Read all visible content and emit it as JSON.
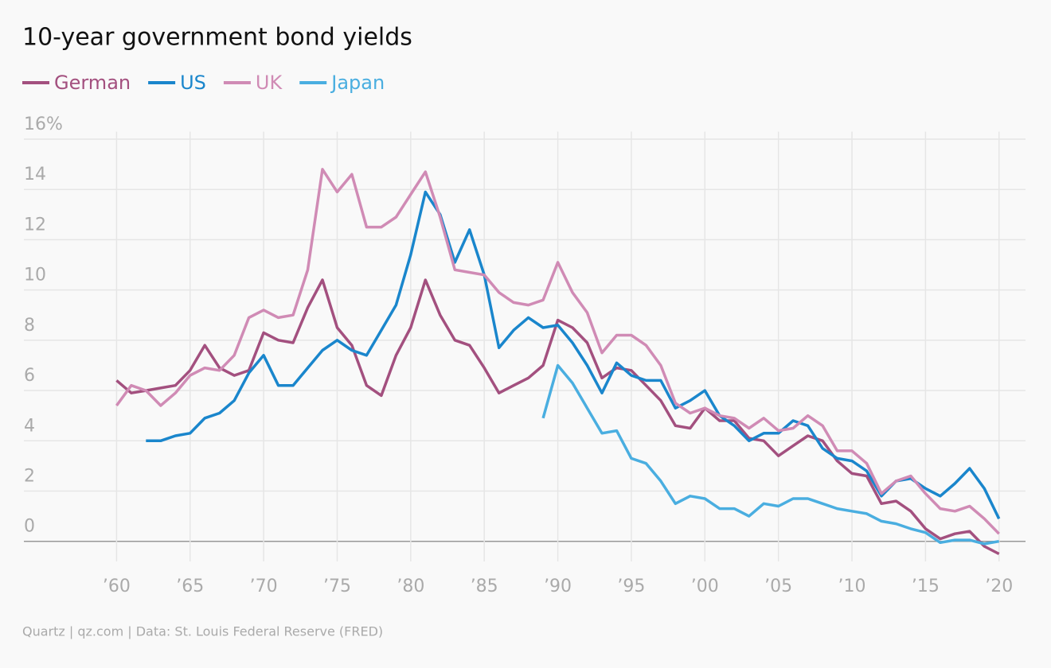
{
  "chart_data": {
    "type": "line",
    "title": "10-year government bond yields",
    "source": "Quartz | qz.com | Data: St. Louis Federal Reserve (FRED)",
    "x": [
      1960,
      1961,
      1962,
      1963,
      1964,
      1965,
      1966,
      1967,
      1968,
      1969,
      1970,
      1971,
      1972,
      1973,
      1974,
      1975,
      1976,
      1977,
      1978,
      1979,
      1980,
      1981,
      1982,
      1983,
      1984,
      1985,
      1986,
      1987,
      1988,
      1989,
      1990,
      1991,
      1992,
      1993,
      1994,
      1995,
      1996,
      1997,
      1998,
      1999,
      2000,
      2001,
      2002,
      2003,
      2004,
      2005,
      2006,
      2007,
      2008,
      2009,
      2010,
      2011,
      2012,
      2013,
      2014,
      2015,
      2016,
      2017,
      2018,
      2019,
      2020
    ],
    "series": [
      {
        "name": "German",
        "color": "#a3507f",
        "values": [
          6.4,
          5.9,
          6.0,
          6.1,
          6.2,
          6.8,
          7.8,
          6.9,
          6.6,
          6.8,
          8.3,
          8.0,
          7.9,
          9.3,
          10.4,
          8.5,
          7.8,
          6.2,
          5.8,
          7.4,
          8.5,
          10.4,
          9.0,
          8.0,
          7.8,
          6.9,
          5.9,
          6.2,
          6.5,
          7.0,
          8.8,
          8.5,
          7.9,
          6.5,
          6.9,
          6.8,
          6.2,
          5.6,
          4.6,
          4.5,
          5.3,
          4.8,
          4.8,
          4.1,
          4.0,
          3.4,
          3.8,
          4.2,
          4.0,
          3.2,
          2.7,
          2.6,
          1.5,
          1.6,
          1.2,
          0.5,
          0.1,
          0.3,
          0.4,
          -0.2,
          -0.5
        ]
      },
      {
        "name": "US",
        "color": "#1a86cc",
        "values": [
          null,
          null,
          4.0,
          4.0,
          4.2,
          4.3,
          4.9,
          5.1,
          5.6,
          6.7,
          7.4,
          6.2,
          6.2,
          6.9,
          7.6,
          8.0,
          7.6,
          7.4,
          8.4,
          9.4,
          11.4,
          13.9,
          13.0,
          11.1,
          12.4,
          10.6,
          7.7,
          8.4,
          8.9,
          8.5,
          8.6,
          7.9,
          7.0,
          5.9,
          7.1,
          6.6,
          6.4,
          6.4,
          5.3,
          5.6,
          6.0,
          5.0,
          4.6,
          4.0,
          4.3,
          4.3,
          4.8,
          4.6,
          3.7,
          3.3,
          3.2,
          2.8,
          1.8,
          2.4,
          2.5,
          2.1,
          1.8,
          2.3,
          2.9,
          2.1,
          0.9
        ]
      },
      {
        "name": "UK",
        "color": "#d08bb5",
        "values": [
          5.4,
          6.2,
          6.0,
          5.4,
          5.9,
          6.6,
          6.9,
          6.8,
          7.4,
          8.9,
          9.2,
          8.9,
          9.0,
          10.8,
          14.8,
          13.9,
          14.6,
          12.5,
          12.5,
          12.9,
          13.8,
          14.7,
          12.9,
          10.8,
          10.7,
          10.6,
          9.9,
          9.5,
          9.4,
          9.6,
          11.1,
          9.9,
          9.1,
          7.5,
          8.2,
          8.2,
          7.8,
          7.0,
          5.5,
          5.1,
          5.3,
          5.0,
          4.9,
          4.5,
          4.9,
          4.4,
          4.5,
          5.0,
          4.6,
          3.6,
          3.6,
          3.1,
          1.9,
          2.4,
          2.6,
          1.9,
          1.3,
          1.2,
          1.4,
          0.9,
          0.3
        ]
      },
      {
        "name": "Japan",
        "color": "#4aaee0",
        "values": [
          null,
          null,
          null,
          null,
          null,
          null,
          null,
          null,
          null,
          null,
          null,
          null,
          null,
          null,
          null,
          null,
          null,
          null,
          null,
          null,
          null,
          null,
          null,
          null,
          null,
          null,
          null,
          null,
          null,
          4.9,
          7.0,
          6.3,
          5.3,
          4.3,
          4.4,
          3.3,
          3.1,
          2.4,
          1.5,
          1.8,
          1.7,
          1.3,
          1.3,
          1.0,
          1.5,
          1.4,
          1.7,
          1.7,
          1.5,
          1.3,
          1.2,
          1.1,
          0.8,
          0.7,
          0.5,
          0.35,
          -0.05,
          0.05,
          0.05,
          -0.1,
          0.0
        ]
      }
    ],
    "xlim": [
      1953.7,
      2021.8
    ],
    "xticks": [
      {
        "value": 1960,
        "label": "’60"
      },
      {
        "value": 1965,
        "label": "’65"
      },
      {
        "value": 1970,
        "label": "’70"
      },
      {
        "value": 1975,
        "label": "’75"
      },
      {
        "value": 1980,
        "label": "’80"
      },
      {
        "value": 1985,
        "label": "’85"
      },
      {
        "value": 1990,
        "label": "’90"
      },
      {
        "value": 1995,
        "label": "’95"
      },
      {
        "value": 2000,
        "label": "’00"
      },
      {
        "value": 2005,
        "label": "’05"
      },
      {
        "value": 2010,
        "label": "’10"
      },
      {
        "value": 2015,
        "label": "’15"
      },
      {
        "value": 2020,
        "label": "’20"
      }
    ],
    "ylim": [
      -0.8,
      16.3
    ],
    "yticks": [
      0,
      2,
      4,
      6,
      8,
      10,
      12,
      14,
      {
        "value": 16,
        "label": "16%"
      }
    ],
    "grid": true
  }
}
